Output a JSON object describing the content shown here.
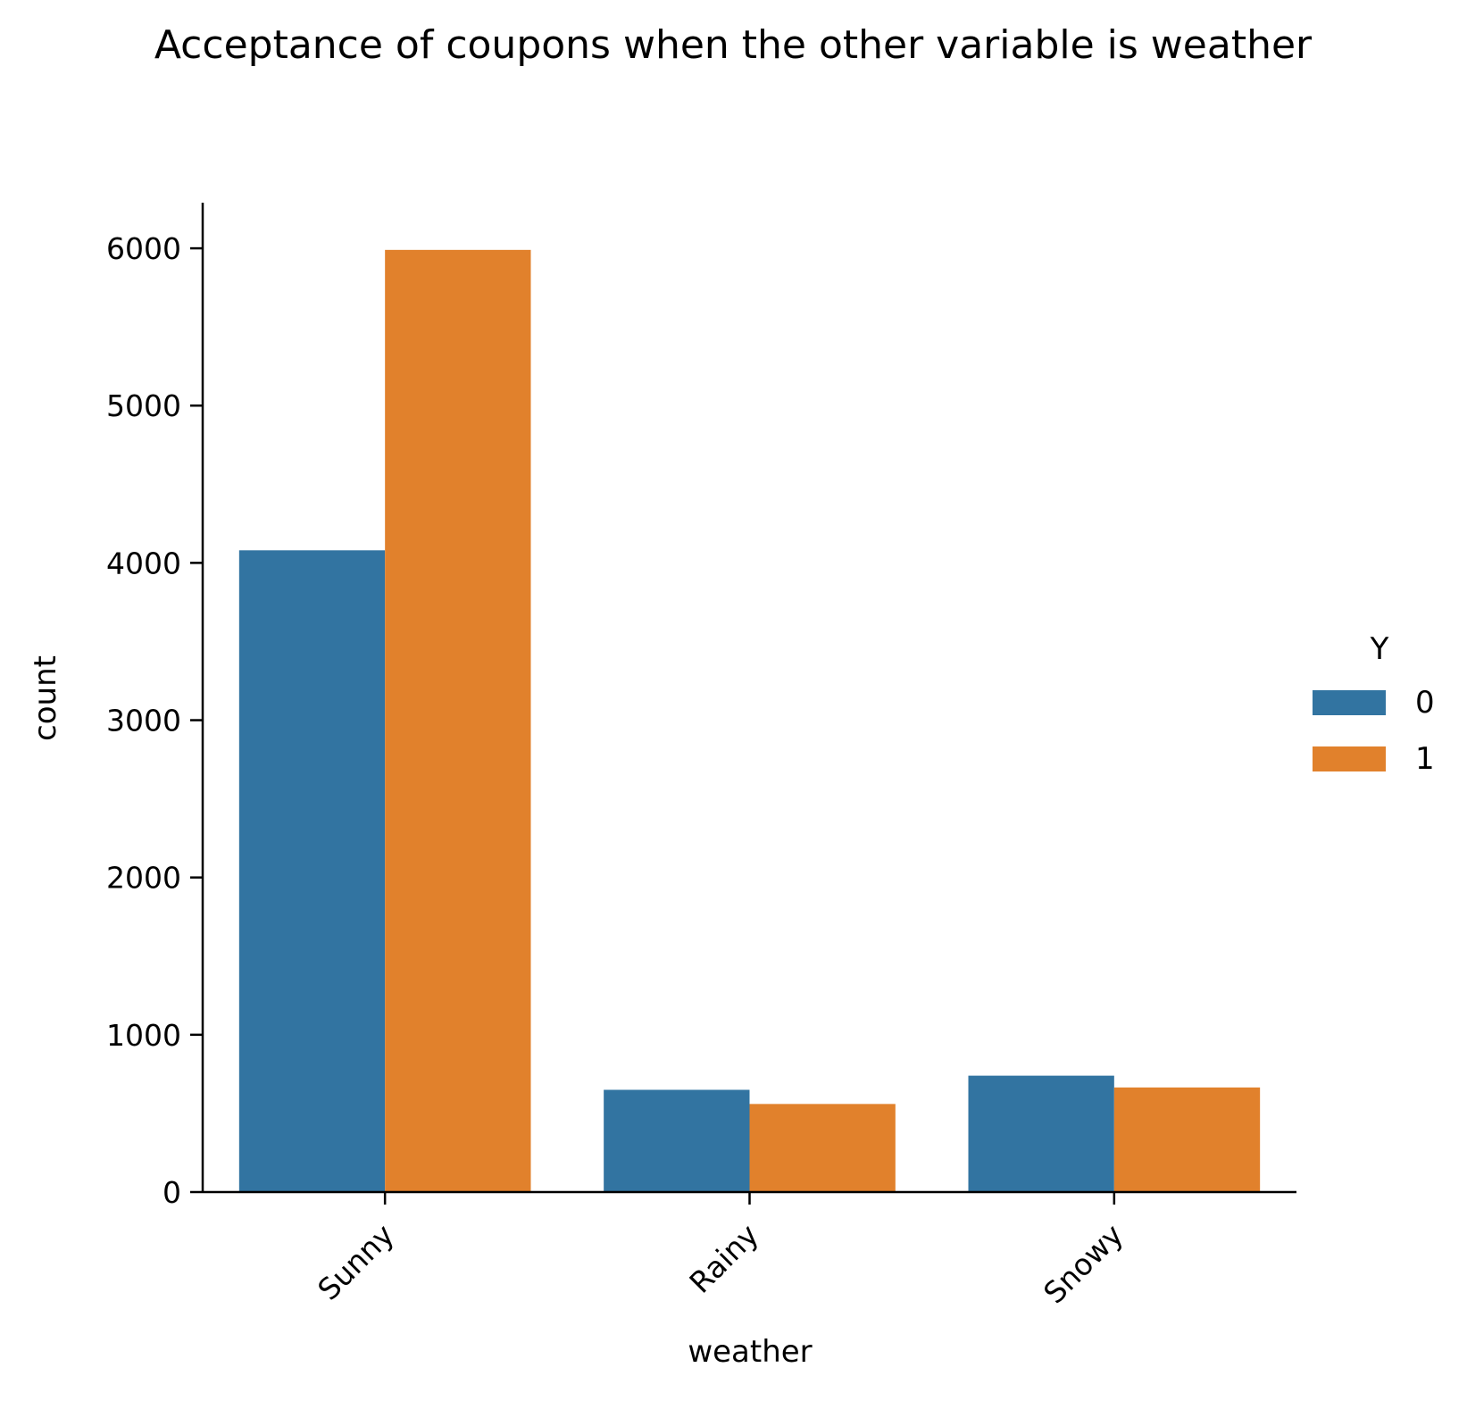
{
  "chart_data": {
    "type": "bar",
    "title": "Acceptance of coupons when the other variable is weather",
    "xlabel": "weather",
    "ylabel": "count",
    "categories": [
      "Sunny",
      "Rainy",
      "Snowy"
    ],
    "series": [
      {
        "name": "0",
        "values": [
          4080,
          650,
          740
        ],
        "color": "#3274a1"
      },
      {
        "name": "1",
        "values": [
          5990,
          560,
          665
        ],
        "color": "#e1812c"
      }
    ],
    "ylim": [
      0,
      6290
    ],
    "yticks": [
      0,
      1000,
      2000,
      3000,
      4000,
      5000,
      6000
    ],
    "legend": {
      "title": "Y",
      "placement": "right"
    },
    "grid": false
  }
}
